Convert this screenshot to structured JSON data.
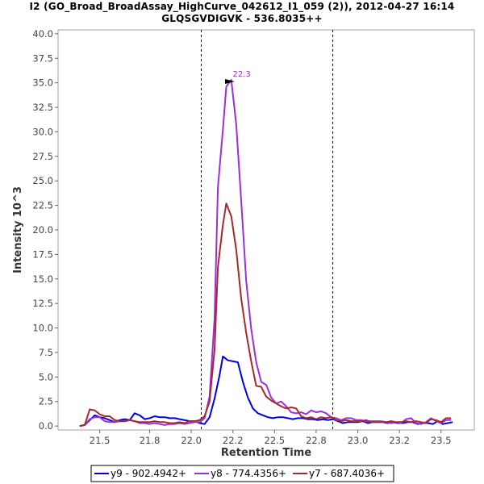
{
  "chart_data": {
    "type": "line",
    "title": "I2 (GO_Broad_BroadAssay_HighCurve_042612_I1_059 (2)), 2012-04-27 16:14",
    "subtitle": "GLQSGVDIGVK - 536.8035++",
    "xlabel": "Retention Time",
    "ylabel": "Intensity 10^3",
    "xlim": [
      21.25,
      23.75
    ],
    "ylim": [
      -0.4,
      40.4
    ],
    "x_ticks": [
      "21.5",
      "21.8",
      "22.0",
      "22.2",
      "22.5",
      "22.8",
      "23.0",
      "23.2",
      "23.5"
    ],
    "y_ticks": [
      "0.0",
      "2.5",
      "5.0",
      "7.5",
      "10.0",
      "12.5",
      "15.0",
      "17.5",
      "20.0",
      "22.5",
      "25.0",
      "27.5",
      "30.0",
      "32.5",
      "35.0",
      "37.5",
      "40.0"
    ],
    "grid": false,
    "integration_boundaries": [
      22.11,
      22.9
    ],
    "peak_annotation": {
      "label": "22.3",
      "x": 22.27,
      "y": 35.3
    },
    "legend_position": "bottom",
    "series": [
      {
        "name": "y9 - 902.4942+",
        "color": "#0000e0",
        "points": [
          [
            21.38,
            0.0
          ],
          [
            21.41,
            0.1
          ],
          [
            21.44,
            0.6
          ],
          [
            21.47,
            1.1
          ],
          [
            21.5,
            0.9
          ],
          [
            21.53,
            0.8
          ],
          [
            21.56,
            0.6
          ],
          [
            21.59,
            0.4
          ],
          [
            21.62,
            0.6
          ],
          [
            21.65,
            0.7
          ],
          [
            21.68,
            0.6
          ],
          [
            21.71,
            1.3
          ],
          [
            21.74,
            1.1
          ],
          [
            21.77,
            0.7
          ],
          [
            21.8,
            0.8
          ],
          [
            21.83,
            1.0
          ],
          [
            21.86,
            0.9
          ],
          [
            21.89,
            0.9
          ],
          [
            21.92,
            0.8
          ],
          [
            21.95,
            0.8
          ],
          [
            21.98,
            0.7
          ],
          [
            22.01,
            0.6
          ],
          [
            22.04,
            0.5
          ],
          [
            22.07,
            0.5
          ],
          [
            22.1,
            0.3
          ],
          [
            22.13,
            0.2
          ],
          [
            22.16,
            0.9
          ],
          [
            22.19,
            2.8
          ],
          [
            22.22,
            5.2
          ],
          [
            22.24,
            7.1
          ],
          [
            22.27,
            6.7
          ],
          [
            22.3,
            6.6
          ],
          [
            22.33,
            6.5
          ],
          [
            22.36,
            4.5
          ],
          [
            22.39,
            2.9
          ],
          [
            22.42,
            1.8
          ],
          [
            22.45,
            1.3
          ],
          [
            22.48,
            1.1
          ],
          [
            22.51,
            0.9
          ],
          [
            22.54,
            0.8
          ],
          [
            22.57,
            0.9
          ],
          [
            22.6,
            0.9
          ],
          [
            22.63,
            0.8
          ],
          [
            22.66,
            0.7
          ],
          [
            22.69,
            0.8
          ],
          [
            22.72,
            0.8
          ],
          [
            22.75,
            0.7
          ],
          [
            22.78,
            0.7
          ],
          [
            22.81,
            0.6
          ],
          [
            22.84,
            0.7
          ],
          [
            22.87,
            0.6
          ],
          [
            22.9,
            0.7
          ],
          [
            22.93,
            0.5
          ],
          [
            22.96,
            0.3
          ],
          [
            22.99,
            0.4
          ],
          [
            23.02,
            0.4
          ],
          [
            23.05,
            0.4
          ],
          [
            23.08,
            0.5
          ],
          [
            23.11,
            0.3
          ],
          [
            23.14,
            0.4
          ],
          [
            23.17,
            0.4
          ],
          [
            23.2,
            0.4
          ],
          [
            23.23,
            0.3
          ],
          [
            23.26,
            0.4
          ],
          [
            23.29,
            0.3
          ],
          [
            23.32,
            0.3
          ],
          [
            23.35,
            0.4
          ],
          [
            23.38,
            0.4
          ],
          [
            23.41,
            0.2
          ],
          [
            23.44,
            0.3
          ],
          [
            23.47,
            0.3
          ],
          [
            23.5,
            0.2
          ],
          [
            23.53,
            0.5
          ],
          [
            23.56,
            0.2
          ],
          [
            23.59,
            0.3
          ],
          [
            23.62,
            0.4
          ]
        ]
      },
      {
        "name": "y8 - 774.4356+",
        "color": "#9b30d9",
        "points": [
          [
            21.38,
            0.0
          ],
          [
            21.41,
            0.1
          ],
          [
            21.44,
            0.7
          ],
          [
            21.47,
            0.9
          ],
          [
            21.5,
            0.9
          ],
          [
            21.53,
            0.5
          ],
          [
            21.56,
            0.4
          ],
          [
            21.59,
            0.4
          ],
          [
            21.62,
            0.5
          ],
          [
            21.65,
            0.5
          ],
          [
            21.68,
            0.6
          ],
          [
            21.71,
            0.5
          ],
          [
            21.74,
            0.3
          ],
          [
            21.77,
            0.3
          ],
          [
            21.8,
            0.2
          ],
          [
            21.83,
            0.3
          ],
          [
            21.86,
            0.2
          ],
          [
            21.89,
            0.1
          ],
          [
            21.92,
            0.2
          ],
          [
            21.95,
            0.2
          ],
          [
            21.98,
            0.3
          ],
          [
            22.01,
            0.2
          ],
          [
            22.04,
            0.3
          ],
          [
            22.07,
            0.4
          ],
          [
            22.1,
            0.4
          ],
          [
            22.13,
            0.8
          ],
          [
            22.16,
            3.0
          ],
          [
            22.19,
            11.0
          ],
          [
            22.21,
            24.3
          ],
          [
            22.24,
            30.2
          ],
          [
            22.26,
            34.6
          ],
          [
            22.29,
            35.3
          ],
          [
            22.32,
            30.8
          ],
          [
            22.35,
            23.0
          ],
          [
            22.38,
            14.8
          ],
          [
            22.41,
            9.9
          ],
          [
            22.44,
            6.5
          ],
          [
            22.47,
            4.5
          ],
          [
            22.5,
            4.2
          ],
          [
            22.53,
            2.9
          ],
          [
            22.56,
            2.3
          ],
          [
            22.59,
            2.5
          ],
          [
            22.62,
            2.0
          ],
          [
            22.65,
            1.4
          ],
          [
            22.68,
            1.3
          ],
          [
            22.71,
            1.4
          ],
          [
            22.74,
            1.2
          ],
          [
            22.77,
            1.6
          ],
          [
            22.8,
            1.4
          ],
          [
            22.83,
            1.5
          ],
          [
            22.86,
            1.3
          ],
          [
            22.89,
            0.9
          ],
          [
            22.92,
            0.8
          ],
          [
            22.95,
            0.6
          ],
          [
            22.98,
            0.8
          ],
          [
            23.01,
            0.8
          ],
          [
            23.04,
            0.6
          ],
          [
            23.07,
            0.6
          ],
          [
            23.1,
            0.5
          ],
          [
            23.13,
            0.5
          ],
          [
            23.16,
            0.5
          ],
          [
            23.19,
            0.5
          ],
          [
            23.22,
            0.4
          ],
          [
            23.25,
            0.3
          ],
          [
            23.28,
            0.4
          ],
          [
            23.31,
            0.3
          ],
          [
            23.34,
            0.7
          ],
          [
            23.37,
            0.8
          ],
          [
            23.4,
            0.3
          ],
          [
            23.43,
            0.2
          ],
          [
            23.46,
            0.4
          ],
          [
            23.49,
            0.8
          ],
          [
            23.52,
            0.5
          ],
          [
            23.55,
            0.3
          ],
          [
            23.58,
            0.6
          ],
          [
            23.61,
            0.6
          ]
        ]
      },
      {
        "name": "y7 - 687.4036+",
        "color": "#a52a2a",
        "points": [
          [
            21.38,
            0.0
          ],
          [
            21.41,
            0.1
          ],
          [
            21.44,
            1.7
          ],
          [
            21.47,
            1.6
          ],
          [
            21.5,
            1.2
          ],
          [
            21.53,
            1.0
          ],
          [
            21.56,
            1.0
          ],
          [
            21.59,
            0.6
          ],
          [
            21.62,
            0.5
          ],
          [
            21.65,
            0.5
          ],
          [
            21.68,
            0.6
          ],
          [
            21.71,
            0.5
          ],
          [
            21.74,
            0.4
          ],
          [
            21.77,
            0.4
          ],
          [
            21.8,
            0.4
          ],
          [
            21.83,
            0.5
          ],
          [
            21.86,
            0.4
          ],
          [
            21.89,
            0.4
          ],
          [
            21.92,
            0.3
          ],
          [
            21.95,
            0.3
          ],
          [
            21.98,
            0.4
          ],
          [
            22.01,
            0.3
          ],
          [
            22.04,
            0.5
          ],
          [
            22.07,
            0.5
          ],
          [
            22.1,
            0.6
          ],
          [
            22.13,
            1.0
          ],
          [
            22.16,
            2.5
          ],
          [
            22.19,
            7.8
          ],
          [
            22.21,
            16.2
          ],
          [
            22.24,
            20.5
          ],
          [
            22.26,
            22.7
          ],
          [
            22.29,
            21.4
          ],
          [
            22.32,
            18.0
          ],
          [
            22.35,
            13.0
          ],
          [
            22.38,
            9.5
          ],
          [
            22.41,
            6.6
          ],
          [
            22.44,
            4.1
          ],
          [
            22.47,
            4.0
          ],
          [
            22.5,
            3.0
          ],
          [
            22.53,
            2.6
          ],
          [
            22.56,
            2.3
          ],
          [
            22.59,
            2.0
          ],
          [
            22.62,
            1.8
          ],
          [
            22.65,
            1.9
          ],
          [
            22.68,
            1.8
          ],
          [
            22.71,
            1.0
          ],
          [
            22.74,
            0.8
          ],
          [
            22.77,
            0.9
          ],
          [
            22.8,
            0.7
          ],
          [
            22.83,
            0.9
          ],
          [
            22.86,
            0.8
          ],
          [
            22.89,
            0.9
          ],
          [
            22.92,
            0.6
          ],
          [
            22.95,
            0.5
          ],
          [
            22.98,
            0.6
          ],
          [
            23.01,
            0.5
          ],
          [
            23.04,
            0.5
          ],
          [
            23.07,
            0.5
          ],
          [
            23.1,
            0.6
          ],
          [
            23.13,
            0.4
          ],
          [
            23.16,
            0.4
          ],
          [
            23.19,
            0.4
          ],
          [
            23.22,
            0.4
          ],
          [
            23.25,
            0.5
          ],
          [
            23.28,
            0.4
          ],
          [
            23.31,
            0.4
          ],
          [
            23.34,
            0.5
          ],
          [
            23.37,
            0.4
          ],
          [
            23.4,
            0.5
          ],
          [
            23.43,
            0.4
          ],
          [
            23.46,
            0.3
          ],
          [
            23.49,
            0.7
          ],
          [
            23.52,
            0.6
          ],
          [
            23.55,
            0.4
          ],
          [
            23.58,
            0.8
          ],
          [
            23.61,
            0.8
          ]
        ]
      }
    ]
  }
}
